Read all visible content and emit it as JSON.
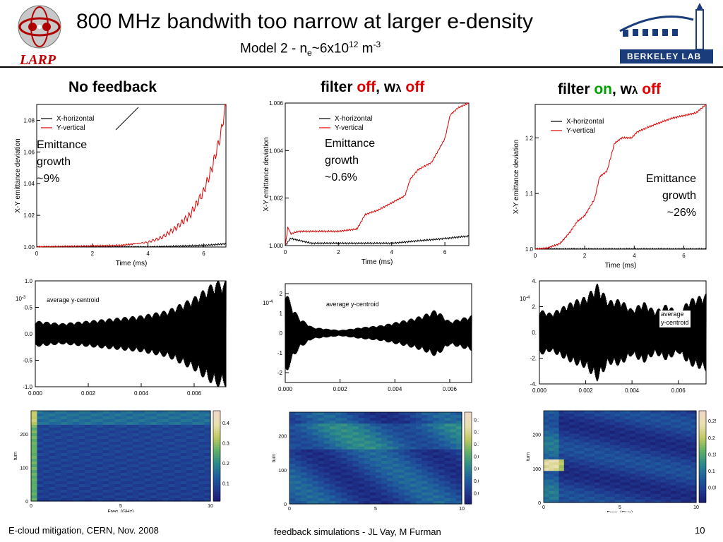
{
  "header": {
    "title": "800 MHz bandwith too narrow at larger e-density",
    "subtitle_prefix": "Model 2 - n",
    "subtitle_sub": "e",
    "subtitle_mid": "~6x10",
    "subtitle_sup": "12",
    "subtitle_unit": " m",
    "subtitle_unit_sup": "-3",
    "left_logo_text": "LARP",
    "right_logo_text": "BERKELEY LAB"
  },
  "columns": {
    "col1": {
      "title": "No feedback"
    },
    "col2": {
      "t1": "filter ",
      "t2": "off",
      "t3": ", w",
      "t4": "λ",
      "t5": " off"
    },
    "col3": {
      "t1": "filter ",
      "t2": "on",
      "t3": ", w",
      "t4": "λ",
      "t5": " off"
    }
  },
  "footer": {
    "left": "E-cloud mitigation, CERN, Nov. 2008",
    "center": "feedback simulations - JL Vay, M Furman",
    "page": "10"
  },
  "colors": {
    "horizontal": "#000000",
    "vertical": "#e00000",
    "accent_red": "#e00000",
    "accent_green": "#00a000"
  },
  "chart_data": [
    {
      "type": "line",
      "panel": "emittance-no-feedback",
      "xlabel": "Time (ms)",
      "ylabel": "X-Y emittance deviation",
      "xlim": [
        0,
        6.8
      ],
      "ylim": [
        1.0,
        1.09
      ],
      "xticks": [
        "0",
        "2",
        "4",
        "6"
      ],
      "yticks": [
        "1.00",
        "1.02",
        "1.04",
        "1.06",
        "1.08"
      ],
      "annotation": [
        "Emittance",
        "growth",
        "~9%"
      ],
      "series": [
        {
          "name": "X-horizontal",
          "color": "#000000",
          "x": [
            0,
            2,
            4,
            5,
            6,
            6.8
          ],
          "y": [
            1.0,
            1.0,
            1.0,
            1.0005,
            1.001,
            1.002
          ]
        },
        {
          "name": "Y-vertical",
          "color": "#e00000",
          "x": [
            0,
            3,
            4,
            4.5,
            5,
            5.5,
            6,
            6.3,
            6.6,
            6.8
          ],
          "y": [
            1.0,
            1.001,
            1.003,
            1.006,
            1.012,
            1.02,
            1.035,
            1.05,
            1.07,
            1.09
          ]
        }
      ]
    },
    {
      "type": "line",
      "panel": "emittance-filter-off",
      "xlabel": "Time (ms)",
      "ylabel": "X-Y emittance deviation",
      "xlim": [
        0,
        6.9
      ],
      "ylim": [
        1.0,
        1.006
      ],
      "xticks": [
        "0",
        "2",
        "4",
        "6"
      ],
      "yticks": [
        "1.000",
        "1.002",
        "1.004",
        "1.006"
      ],
      "annotation": [
        "Emittance",
        "growth",
        "~0.6%"
      ],
      "series": [
        {
          "name": "X-horizontal",
          "color": "#000000",
          "x": [
            0,
            0.2,
            1,
            2,
            3,
            4,
            5,
            6,
            6.9
          ],
          "y": [
            1.0,
            1.0003,
            1.0001,
            1.0001,
            1.0001,
            1.0001,
            1.0002,
            1.0003,
            1.0004
          ]
        },
        {
          "name": "Y-vertical",
          "color": "#e00000",
          "x": [
            0,
            0.1,
            0.2,
            0.5,
            1,
            2,
            2.7,
            3,
            3.5,
            4,
            4.5,
            4.7,
            5,
            5.5,
            6,
            6.2,
            6.5,
            6.9
          ],
          "y": [
            1.0,
            1.0008,
            1.0005,
            1.0006,
            1.0006,
            1.0006,
            1.0007,
            1.0013,
            1.0015,
            1.0018,
            1.0021,
            1.0028,
            1.0032,
            1.0035,
            1.0045,
            1.0055,
            1.0058,
            1.006
          ]
        }
      ]
    },
    {
      "type": "line",
      "panel": "emittance-filter-on",
      "xlabel": "Time (ms)",
      "ylabel": "X-Y emittance deviation",
      "xlim": [
        0,
        6.9
      ],
      "ylim": [
        1.0,
        1.26
      ],
      "xticks": [
        "0",
        "2",
        "4",
        "6"
      ],
      "yticks": [
        "1.0",
        "1.1",
        "1.2"
      ],
      "annotation": [
        "Emittance",
        "growth",
        "~26%"
      ],
      "series": [
        {
          "name": "X-horizontal",
          "color": "#000000",
          "x": [
            0,
            6.9
          ],
          "y": [
            1.0,
            1.0
          ]
        },
        {
          "name": "Y-vertical",
          "color": "#e00000",
          "x": [
            0,
            0.5,
            1,
            1.4,
            1.7,
            2,
            2.4,
            2.6,
            2.9,
            3.2,
            3.5,
            3.9,
            4.1,
            4.6,
            5.2,
            5.5,
            6,
            6.5,
            6.9
          ],
          "y": [
            1.0,
            1.002,
            1.01,
            1.03,
            1.05,
            1.06,
            1.09,
            1.13,
            1.14,
            1.19,
            1.2,
            1.2,
            1.21,
            1.22,
            1.23,
            1.235,
            1.24,
            1.245,
            1.26
          ]
        }
      ]
    },
    {
      "type": "line",
      "panel": "centroid-no-feedback",
      "annotation": "average y-centroid",
      "scale_label": "10",
      "scale_exp": "-3",
      "xlim": [
        0,
        0.0072
      ],
      "ylim": [
        -1.0,
        1.0
      ],
      "xticks": [
        "0.000",
        "0.002",
        "0.004",
        "0.006"
      ],
      "yticks": [
        "1.0",
        "0.5",
        "0.0",
        "-0.5",
        "-1.0"
      ],
      "envelope": {
        "x": [
          0,
          0.001,
          0.002,
          0.003,
          0.004,
          0.005,
          0.006,
          0.0068
        ],
        "amp": [
          0.25,
          0.2,
          0.25,
          0.3,
          0.35,
          0.45,
          0.7,
          1.0
        ]
      }
    },
    {
      "type": "line",
      "panel": "centroid-filter-off",
      "annotation": "average y-centroid",
      "scale_label": "10",
      "scale_exp": "-4",
      "xlim": [
        0,
        0.0068
      ],
      "ylim": [
        -2.5,
        2.5
      ],
      "xticks": [
        "0.000",
        "0.002",
        "0.004",
        "0.006"
      ],
      "yticks": [
        "2",
        "1",
        "0",
        "-1",
        "-2"
      ],
      "envelope": {
        "x": [
          0,
          0.0002,
          0.0005,
          0.001,
          0.002,
          0.0028,
          0.0035,
          0.0045,
          0.005,
          0.0055,
          0.006,
          0.0068
        ],
        "amp": [
          2.3,
          1.5,
          0.8,
          0.3,
          0.15,
          0.3,
          0.4,
          0.7,
          0.9,
          1.2,
          0.6,
          0.9
        ]
      }
    },
    {
      "type": "line",
      "panel": "centroid-filter-on",
      "annotation": "average y-centroid",
      "scale_label": "10",
      "scale_exp": "-4",
      "xlim": [
        0,
        0.0072
      ],
      "ylim": [
        -4,
        4
      ],
      "xticks": [
        "0.000",
        "0.002",
        "0.004",
        "0.006"
      ],
      "yticks": [
        "4.",
        "2.",
        "0.",
        "-2.",
        "-4."
      ],
      "envelope": {
        "x": [
          0,
          0.0005,
          0.001,
          0.0015,
          0.002,
          0.0025,
          0.003,
          0.0035,
          0.004,
          0.0045,
          0.005,
          0.0055,
          0.006,
          0.0065,
          0.0072
        ],
        "amp": [
          1.8,
          1.5,
          2.0,
          2.5,
          2.8,
          3.8,
          2.5,
          2.6,
          1.8,
          2.4,
          1.7,
          2.2,
          1.6,
          2.6,
          3.0
        ]
      }
    },
    {
      "type": "heatmap",
      "panel": "spectrum-no-feedback",
      "xlabel": "Freq. (GHz)",
      "ylabel": "turn",
      "xticks": [
        "0",
        "5",
        "10"
      ],
      "yticks": [
        "0",
        "100",
        "200"
      ],
      "colorbar_ticks": [
        "0.4",
        "0.3",
        "0.2",
        "0.1"
      ]
    },
    {
      "type": "heatmap",
      "panel": "spectrum-filter-off",
      "xlabel": "Freq. (GHz)",
      "ylabel": "turn",
      "xticks": [
        "0",
        "5",
        "10"
      ],
      "yticks": [
        "0",
        "100",
        "200"
      ],
      "colorbar_ticks": [
        "0.14",
        "0.12",
        "0.1",
        "0.08",
        "0.06",
        "0.04",
        "0.02"
      ]
    },
    {
      "type": "heatmap",
      "panel": "spectrum-filter-on",
      "xlabel": "Freq. (GHz)",
      "ylabel": "turn",
      "xticks": [
        "0",
        "5",
        "10"
      ],
      "yticks": [
        "0",
        "100",
        "200"
      ],
      "colorbar_ticks": [
        "0.25",
        "0.2",
        "0.15",
        "0.1",
        "0.05"
      ]
    }
  ]
}
